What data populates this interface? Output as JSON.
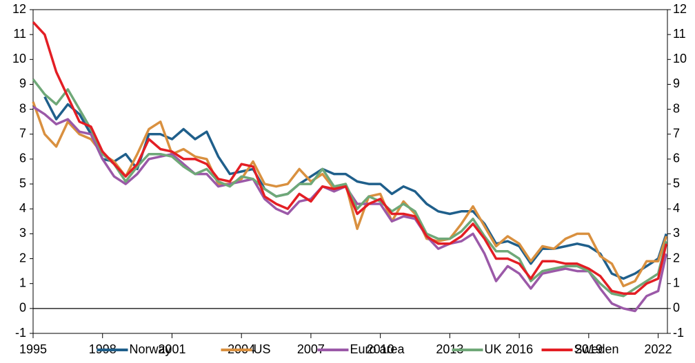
{
  "chart_data": {
    "type": "line",
    "x": [
      1995,
      1995.5,
      1996,
      1996.5,
      1997,
      1997.5,
      1998,
      1998.5,
      1999,
      1999.5,
      2000,
      2000.5,
      2001,
      2001.5,
      2002,
      2002.5,
      2003,
      2003.5,
      2004,
      2004.5,
      2005,
      2005.5,
      2006,
      2006.5,
      2007,
      2007.5,
      2008,
      2008.5,
      2009,
      2009.5,
      2010,
      2010.5,
      2011,
      2011.5,
      2012,
      2012.5,
      2013,
      2013.5,
      2014,
      2014.5,
      2015,
      2015.5,
      2016,
      2016.5,
      2017,
      2017.5,
      2018,
      2018.5,
      2019,
      2019.5,
      2020,
      2020.5,
      2021,
      2021.5,
      2022,
      2022.35
    ],
    "series": [
      {
        "name": "Norway",
        "color": "#1f5f8b",
        "values": [
          null,
          8.5,
          7.6,
          8.2,
          7.8,
          7.0,
          6.0,
          5.9,
          6.2,
          5.6,
          7.0,
          7.0,
          6.8,
          7.2,
          6.8,
          7.1,
          6.1,
          5.4,
          5.5,
          5.6,
          4.8,
          4.5,
          4.6,
          5.0,
          5.3,
          5.6,
          5.4,
          5.4,
          5.1,
          5.0,
          5.0,
          4.6,
          4.9,
          4.7,
          4.2,
          3.9,
          3.8,
          3.9,
          3.9,
          3.4,
          2.6,
          2.7,
          2.5,
          1.8,
          2.4,
          2.4,
          2.5,
          2.6,
          2.5,
          2.2,
          1.4,
          1.2,
          1.4,
          1.7,
          2.0,
          3.0
        ]
      },
      {
        "name": "US",
        "color": "#d9903f",
        "values": [
          8.3,
          7.0,
          6.5,
          7.5,
          7.0,
          6.8,
          6.2,
          5.9,
          5.3,
          6.2,
          7.2,
          7.5,
          6.2,
          6.4,
          6.1,
          6.0,
          5.0,
          5.0,
          5.2,
          5.9,
          5.0,
          4.9,
          5.0,
          5.6,
          5.1,
          5.4,
          4.8,
          5.0,
          3.2,
          4.5,
          4.6,
          3.5,
          4.3,
          3.8,
          2.8,
          2.7,
          2.8,
          3.4,
          4.1,
          3.3,
          2.5,
          2.9,
          2.6,
          1.9,
          2.5,
          2.4,
          2.8,
          3.0,
          3.0,
          2.1,
          1.8,
          0.9,
          1.1,
          1.9,
          1.9,
          2.9
        ]
      },
      {
        "name": "Euro area",
        "color": "#9b59a8",
        "values": [
          8.1,
          7.8,
          7.4,
          7.6,
          7.1,
          7.0,
          6.0,
          5.3,
          5.0,
          5.4,
          6.0,
          6.1,
          6.2,
          5.8,
          5.4,
          5.4,
          4.9,
          5.0,
          5.1,
          5.2,
          4.4,
          4.0,
          3.8,
          4.3,
          4.4,
          4.9,
          4.7,
          4.9,
          4.2,
          4.2,
          4.2,
          3.5,
          3.7,
          3.6,
          2.9,
          2.4,
          2.6,
          2.7,
          3.0,
          2.2,
          1.1,
          1.7,
          1.4,
          0.8,
          1.4,
          1.5,
          1.6,
          1.5,
          1.5,
          0.8,
          0.2,
          0.0,
          -0.1,
          0.5,
          0.7,
          2.2
        ]
      },
      {
        "name": "UK",
        "color": "#6fa878",
        "values": [
          9.2,
          8.6,
          8.2,
          8.8,
          8.0,
          7.2,
          6.2,
          5.8,
          5.1,
          5.7,
          6.2,
          6.2,
          6.1,
          5.7,
          5.4,
          5.6,
          5.1,
          4.9,
          5.3,
          5.2,
          4.8,
          4.5,
          4.6,
          5.0,
          5.0,
          5.6,
          4.9,
          5.0,
          4.0,
          4.5,
          4.3,
          3.9,
          4.2,
          3.9,
          3.0,
          2.8,
          2.8,
          3.1,
          3.6,
          2.9,
          2.3,
          2.3,
          2.0,
          1.1,
          1.5,
          1.6,
          1.7,
          1.7,
          1.5,
          1.0,
          0.6,
          0.5,
          0.8,
          1.1,
          1.4,
          2.7
        ]
      },
      {
        "name": "Sweden",
        "color": "#e31e24",
        "values": [
          11.5,
          11.0,
          9.5,
          8.5,
          7.5,
          7.3,
          6.3,
          5.8,
          5.3,
          5.8,
          6.8,
          6.4,
          6.3,
          6.0,
          6.0,
          5.8,
          5.2,
          5.1,
          5.8,
          5.7,
          4.5,
          4.2,
          4.0,
          4.6,
          4.3,
          4.9,
          4.8,
          4.9,
          3.8,
          4.2,
          4.4,
          3.8,
          3.8,
          3.7,
          2.9,
          2.6,
          2.6,
          2.9,
          3.4,
          2.8,
          2.0,
          2.0,
          1.8,
          1.2,
          1.9,
          1.9,
          1.8,
          1.8,
          1.6,
          1.3,
          0.7,
          0.6,
          0.6,
          1.0,
          1.2,
          2.6
        ]
      }
    ],
    "xlim": [
      1995,
      2022.4
    ],
    "xticks": [
      1995,
      1998,
      2001,
      2004,
      2007,
      2010,
      2013,
      2016,
      2019,
      2022
    ],
    "ylim": [
      -1,
      12
    ],
    "yticks": [
      -1,
      0,
      1,
      2,
      3,
      4,
      5,
      6,
      7,
      8,
      9,
      10,
      11,
      12
    ],
    "y2lim": [
      -1,
      12
    ],
    "y2ticks": [
      -1,
      0,
      1,
      2,
      3,
      4,
      5,
      6,
      7,
      8,
      9,
      10,
      11,
      12
    ],
    "legend": "bottom"
  }
}
